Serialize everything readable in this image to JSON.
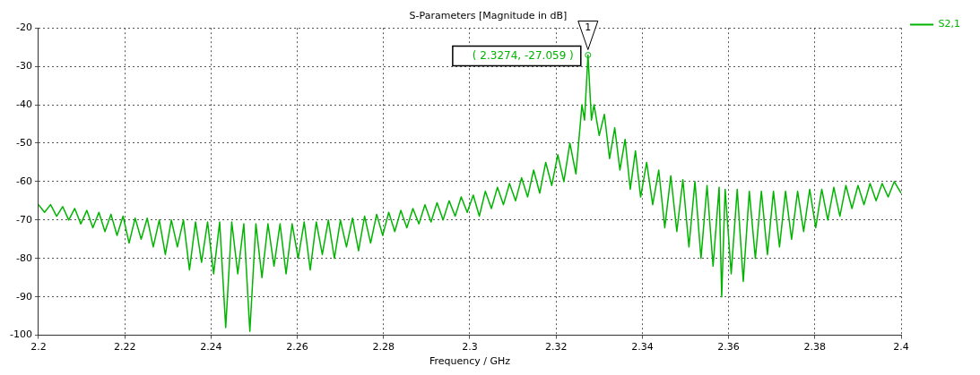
{
  "chart_data": {
    "type": "line",
    "title": "S-Parameters [Magnitude in dB]",
    "xlabel": "Frequency / GHz",
    "xlim": [
      2.2,
      2.4
    ],
    "xticks": [
      2.2,
      2.22,
      2.24,
      2.26,
      2.28,
      2.3,
      2.32,
      2.34,
      2.36,
      2.38,
      2.4
    ],
    "ylim": [
      -100,
      -20
    ],
    "yticks": [
      -100,
      -90,
      -80,
      -70,
      -60,
      -50,
      -40,
      -30,
      -20
    ],
    "grid": true,
    "legend": "top right",
    "marker": "none",
    "line_style": "solid",
    "annotations": [
      {
        "text": "1",
        "x": 2.3274,
        "y": -27.059
      },
      {
        "text": "( 2.3274, -27.059 )",
        "x": 2.3274,
        "y": -27.059
      }
    ],
    "series": [
      {
        "name": "S2,1",
        "color": "#00b400",
        "x": [
          2.2,
          2.2014,
          2.2028,
          2.2042,
          2.2056,
          2.207,
          2.2084,
          2.2098,
          2.2112,
          2.2126,
          2.214,
          2.2154,
          2.2168,
          2.2182,
          2.2196,
          2.221,
          2.2224,
          2.2238,
          2.2252,
          2.2266,
          2.228,
          2.2294,
          2.2308,
          2.2322,
          2.2336,
          2.235,
          2.2364,
          2.2378,
          2.2392,
          2.2406,
          2.242,
          2.2434,
          2.2448,
          2.2462,
          2.2476,
          2.249,
          2.2504,
          2.2518,
          2.2532,
          2.2546,
          2.256,
          2.2574,
          2.2588,
          2.2602,
          2.2616,
          2.263,
          2.2644,
          2.2658,
          2.2672,
          2.2686,
          2.27,
          2.2714,
          2.2728,
          2.2742,
          2.2756,
          2.277,
          2.2784,
          2.2798,
          2.2812,
          2.2826,
          2.284,
          2.2854,
          2.2868,
          2.2882,
          2.2896,
          2.291,
          2.2924,
          2.2938,
          2.2952,
          2.2966,
          2.298,
          2.2994,
          2.3008,
          2.3022,
          2.3036,
          2.305,
          2.3064,
          2.3078,
          2.3092,
          2.3106,
          2.312,
          2.3134,
          2.3148,
          2.3162,
          2.3176,
          2.319,
          2.3204,
          2.3218,
          2.3232,
          2.3246,
          2.326,
          2.3266,
          2.3274,
          2.3282,
          2.3288,
          2.33,
          2.3312,
          2.3324,
          2.3336,
          2.3348,
          2.336,
          2.3372,
          2.3384,
          2.3396,
          2.341,
          2.3424,
          2.3438,
          2.3452,
          2.3466,
          2.348,
          2.3494,
          2.3508,
          2.3522,
          2.3536,
          2.355,
          2.3564,
          2.3578,
          2.3584,
          2.3592,
          2.3606,
          2.362,
          2.3634,
          2.3648,
          2.3662,
          2.3676,
          2.369,
          2.3704,
          2.3718,
          2.3732,
          2.3746,
          2.376,
          2.3774,
          2.3788,
          2.3802,
          2.3816,
          2.383,
          2.3844,
          2.3858,
          2.3872,
          2.3886,
          2.39,
          2.3914,
          2.3928,
          2.3942,
          2.3956,
          2.397,
          2.3984,
          2.4
        ],
        "values": [
          -66,
          -68,
          -66,
          -69,
          -66.5,
          -70,
          -67,
          -71,
          -67.5,
          -72,
          -68,
          -73,
          -68.5,
          -74,
          -69,
          -76,
          -69.5,
          -75,
          -69.5,
          -77,
          -70,
          -79,
          -70,
          -77,
          -70,
          -83,
          -70.5,
          -81,
          -70.5,
          -84,
          -70.5,
          -98,
          -70.5,
          -84,
          -71,
          -99,
          -71,
          -85,
          -71,
          -82,
          -71,
          -84,
          -71,
          -80,
          -70.5,
          -83,
          -70.5,
          -79,
          -70,
          -80,
          -70,
          -77,
          -69.5,
          -78,
          -69,
          -76,
          -68.5,
          -74,
          -68,
          -73,
          -67.5,
          -72,
          -67,
          -71,
          -66,
          -70.5,
          -65.5,
          -70,
          -65,
          -69,
          -64,
          -68,
          -63.5,
          -69,
          -62.5,
          -67,
          -61.5,
          -66,
          -60.5,
          -65,
          -59,
          -64,
          -57,
          -63,
          -55,
          -61,
          -53,
          -60,
          -50,
          -58,
          -40,
          -44,
          -27.059,
          -44,
          -40,
          -48,
          -42.5,
          -54,
          -46,
          -57,
          -49,
          -62,
          -52,
          -64,
          -55,
          -66,
          -57,
          -72,
          -58.5,
          -73,
          -59.5,
          -77,
          -60,
          -80,
          -61,
          -82,
          -61.5,
          -90,
          -62,
          -84,
          -62,
          -86,
          -62.5,
          -80,
          -62.5,
          -79,
          -62.5,
          -77,
          -62.5,
          -75,
          -62.5,
          -73,
          -62,
          -72,
          -62,
          -70,
          -61.5,
          -69,
          -61,
          -67,
          -61,
          -66,
          -60.5,
          -65,
          -60.5,
          -64,
          -60,
          -63
        ]
      }
    ]
  }
}
